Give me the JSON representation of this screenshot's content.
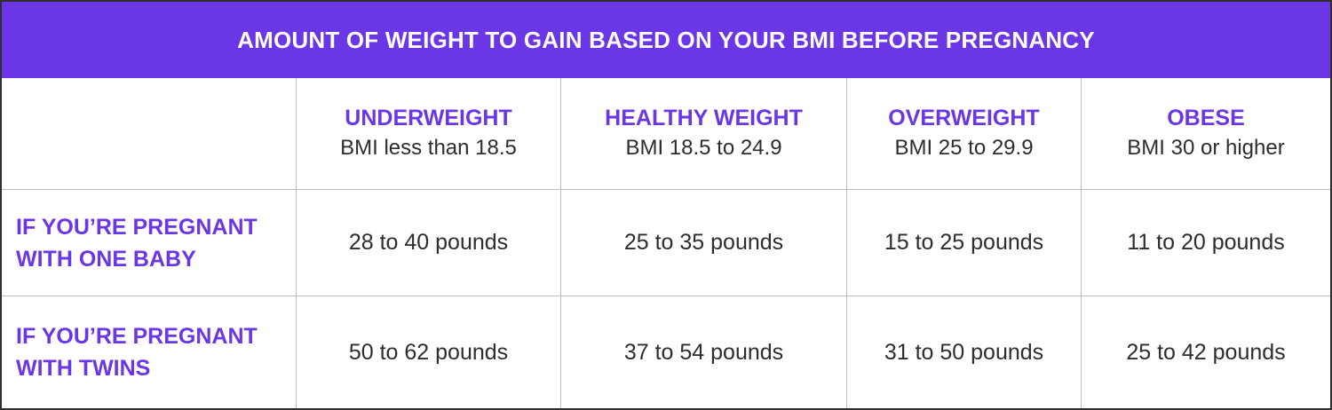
{
  "table": {
    "title": "AMOUNT OF WEIGHT TO GAIN BASED ON YOUR BMI BEFORE PREGNANCY",
    "categories": [
      {
        "name": "UNDERWEIGHT",
        "range": "BMI less than 18.5"
      },
      {
        "name": "HEALTHY WEIGHT",
        "range": "BMI 18.5 to 24.9"
      },
      {
        "name": "OVERWEIGHT",
        "range": "BMI 25 to 29.9"
      },
      {
        "name": "OBESE",
        "range": "BMI 30 or higher"
      }
    ],
    "rows": [
      {
        "label": "IF YOU’RE PREGNANT\nWITH ONE BABY",
        "values": [
          "28 to 40 pounds",
          "25 to 35 pounds",
          "15 to 25 pounds",
          "11 to 20 pounds"
        ]
      },
      {
        "label": "IF YOU’RE PREGNANT\nWITH TWINS",
        "values": [
          "50 to 62 pounds",
          "37 to 54 pounds",
          "31 to 50 pounds",
          "25 to 42 pounds"
        ]
      }
    ]
  },
  "colors": {
    "accent": "#6a36e6",
    "text": "#2d2d2d",
    "border": "#bdbdbd",
    "background": "#ffffff"
  }
}
